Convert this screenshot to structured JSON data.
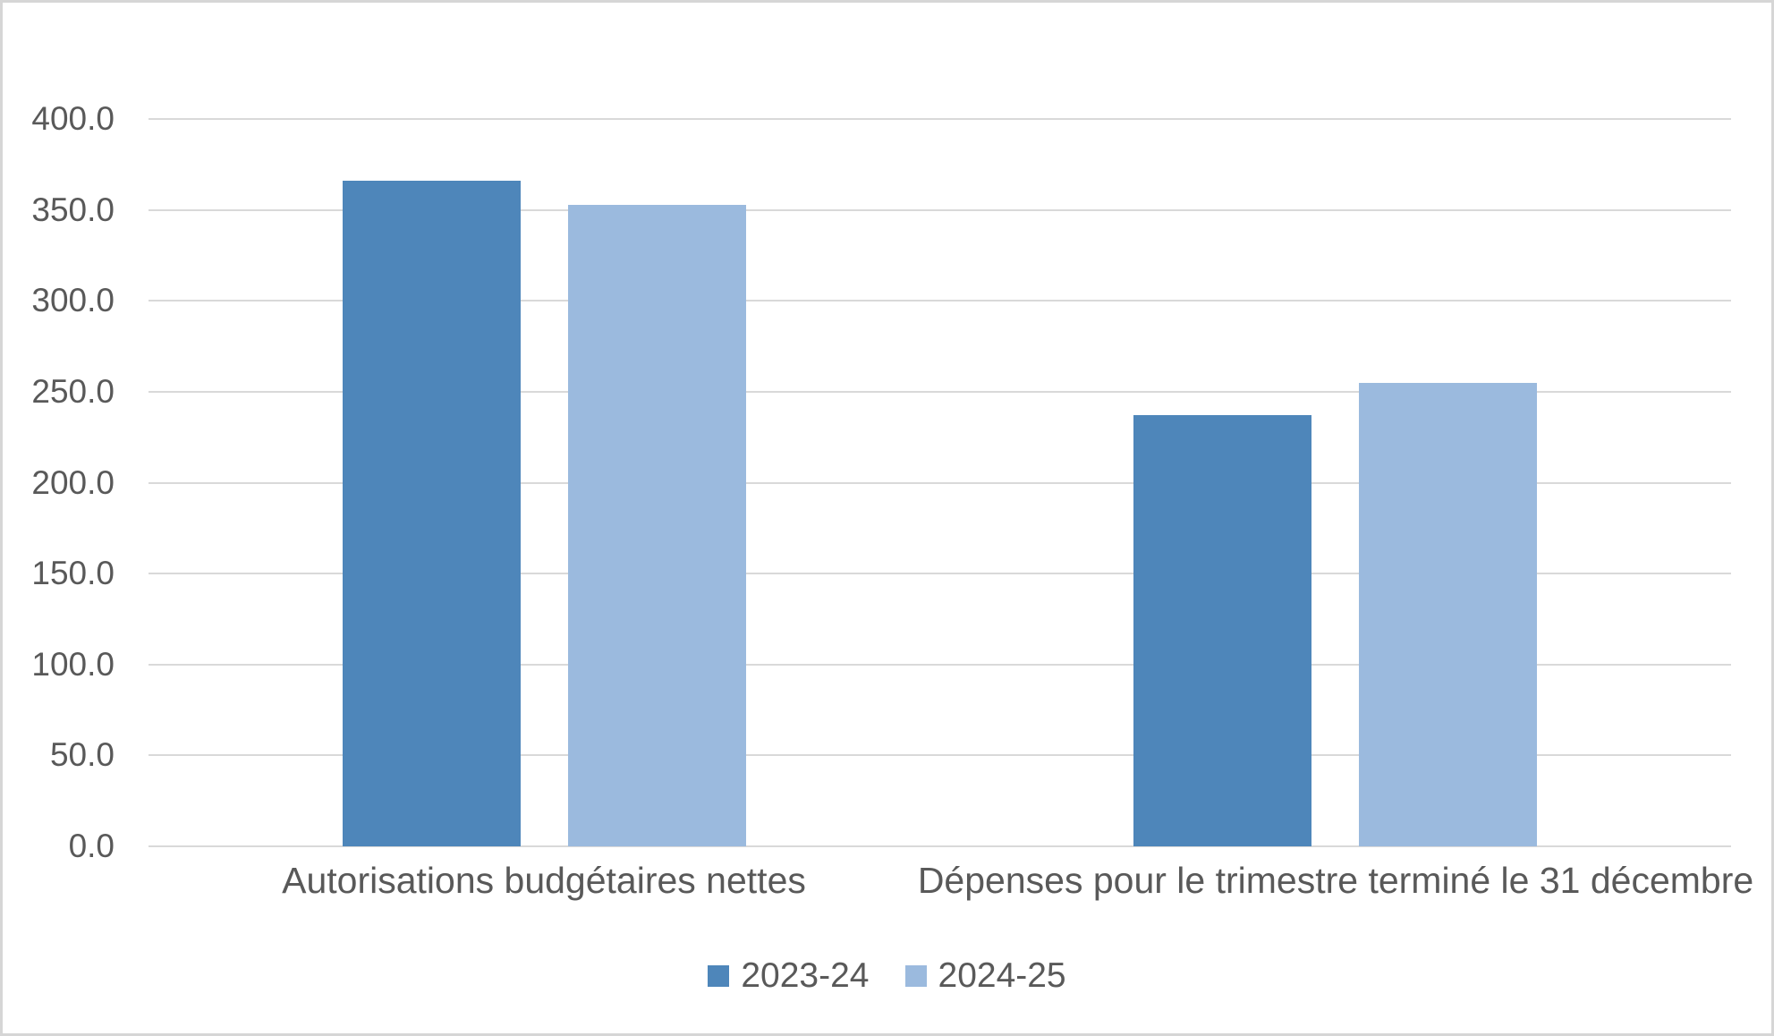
{
  "chart_data": {
    "type": "bar",
    "title": "",
    "xlabel": "",
    "ylabel": "",
    "categories": [
      "Autorisations budgétaires nettes",
      "Dépenses pour le trimestre terminé le 31 décembre"
    ],
    "series": [
      {
        "name": "2023-24",
        "color": "#4e86ba",
        "values": [
          366.0,
          237.0
        ]
      },
      {
        "name": "2024-25",
        "color": "#9bbade",
        "values": [
          353.0,
          255.0
        ]
      }
    ],
    "ylim": [
      0,
      400
    ],
    "ytick_step": 50,
    "ytick_labels": [
      "0.0",
      "50.0",
      "100.0",
      "150.0",
      "200.0",
      "250.0",
      "300.0",
      "350.0",
      "400.0"
    ],
    "grid": true,
    "legend_position": "bottom-center"
  },
  "colors": {
    "bar_dark": "#4e86ba",
    "bar_light": "#9bbade",
    "gridline": "#d9d9d9",
    "text": "#595959",
    "frame_border": "#d6d6d6",
    "background": "#ffffff"
  }
}
